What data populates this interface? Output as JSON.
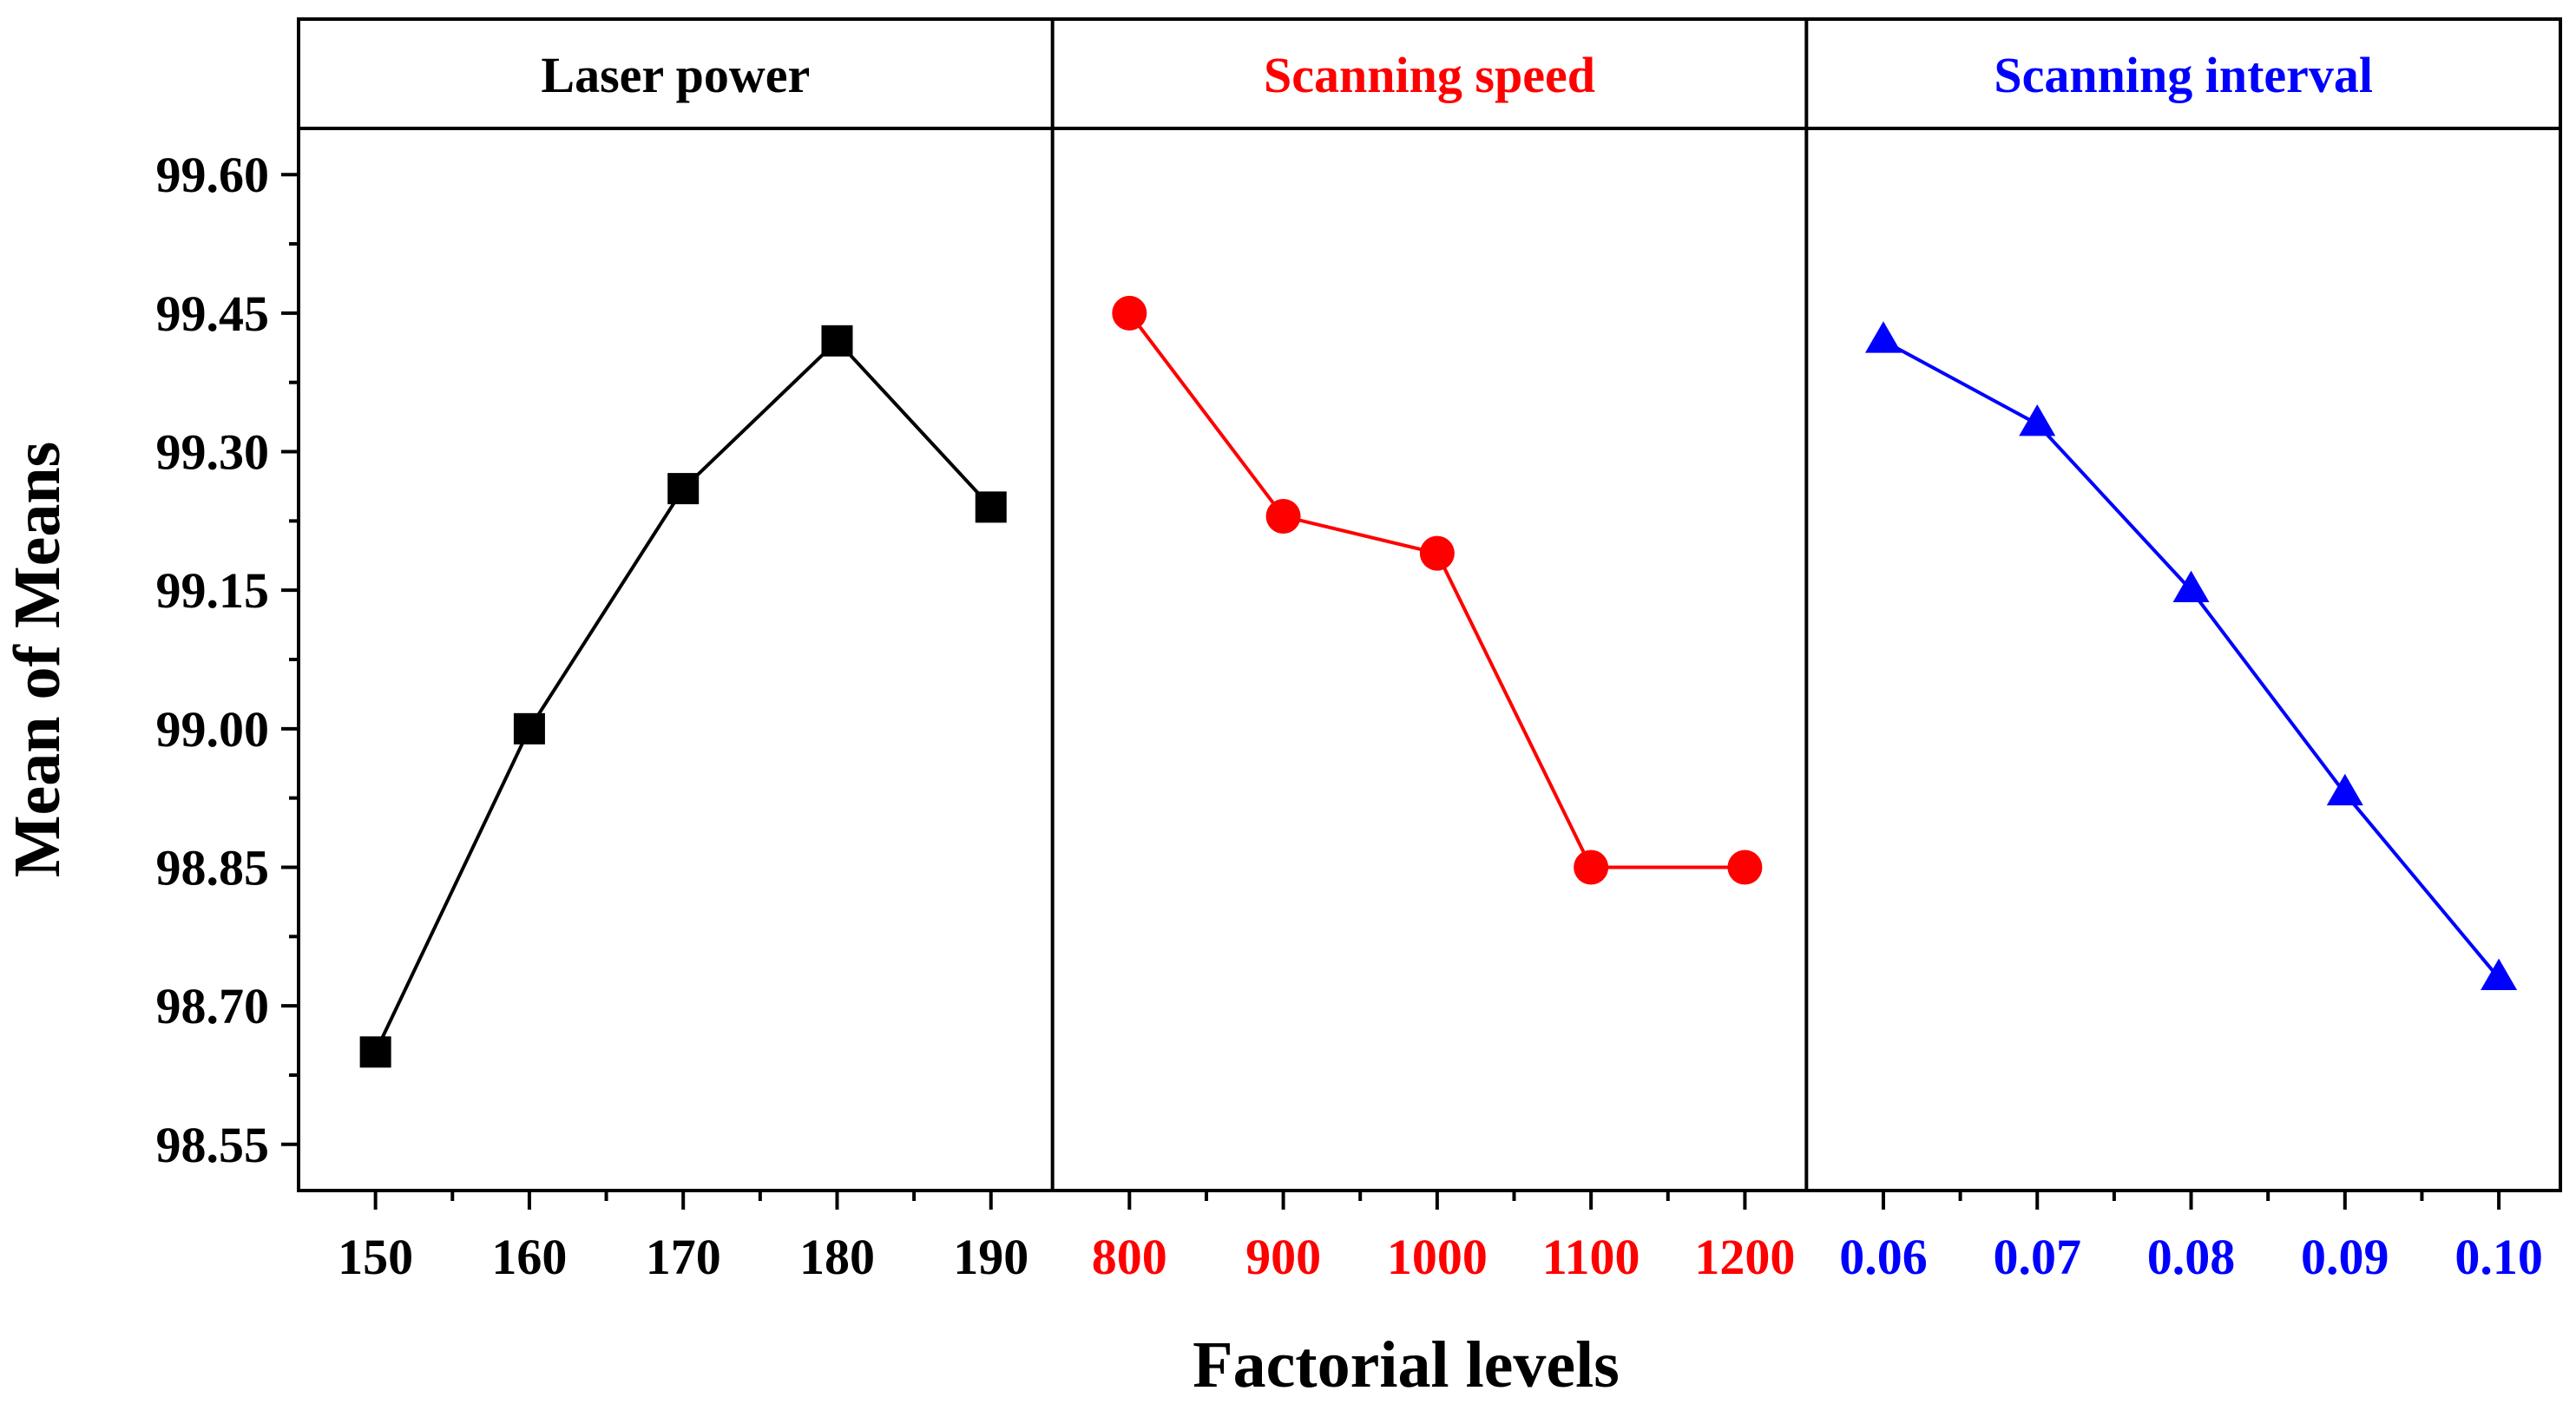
{
  "chart_data": {
    "type": "line",
    "title": "",
    "xlabel": "Factorial levels",
    "ylabel": "Mean of Means",
    "ylim": [
      98.5,
      99.65
    ],
    "yticks": [
      98.55,
      98.7,
      98.85,
      99.0,
      99.15,
      99.3,
      99.45,
      99.6
    ],
    "ytick_labels": [
      "98.55",
      "98.70",
      "98.85",
      "99.00",
      "99.15",
      "99.30",
      "99.45",
      "99.60"
    ],
    "grid": false,
    "panels": [
      {
        "name": "Laser power",
        "color": "#000000",
        "marker": "square",
        "categories": [
          "150",
          "160",
          "170",
          "180",
          "190"
        ],
        "values": [
          98.65,
          99.0,
          99.26,
          99.42,
          99.24
        ]
      },
      {
        "name": "Scanning speed",
        "color": "#ff0000",
        "marker": "circle",
        "categories": [
          "800",
          "900",
          "1000",
          "1100",
          "1200"
        ],
        "values": [
          99.45,
          99.23,
          99.19,
          98.85,
          98.85
        ]
      },
      {
        "name": "Scanning interval",
        "color": "#0000ff",
        "marker": "triangle",
        "categories": [
          "0.06",
          "0.07",
          "0.08",
          "0.09",
          "0.10"
        ],
        "values": [
          99.42,
          99.33,
          99.15,
          98.93,
          98.73
        ]
      }
    ]
  }
}
